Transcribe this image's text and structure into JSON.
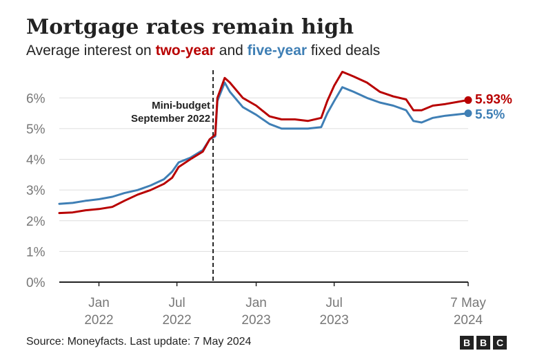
{
  "header": {
    "title": "Mortgage rates remain high",
    "subtitle_parts": [
      "Average interest on ",
      "two-year",
      " and ",
      "five-year",
      " fixed deals"
    ]
  },
  "footer": {
    "source": "Source: Moneyfacts. Last update: 7 May 2024",
    "logo_letters": [
      "B",
      "B",
      "C"
    ]
  },
  "colors": {
    "two_year": "#b80000",
    "five_year": "#3f7fb5",
    "axis": "#222222",
    "grid": "#dddddd",
    "tick_label": "#777777"
  },
  "chart_data": {
    "type": "line",
    "title": "Mortgage rates remain high",
    "subtitle": "Average interest on two-year and five-year fixed deals",
    "ylim": [
      0,
      6.5
    ],
    "y_ticks": [
      {
        "value": 0,
        "label": "0%"
      },
      {
        "value": 1,
        "label": "1%"
      },
      {
        "value": 2,
        "label": "2%"
      },
      {
        "value": 3,
        "label": "3%"
      },
      {
        "value": 4,
        "label": "4%"
      },
      {
        "value": 5,
        "label": "5%"
      },
      {
        "value": 6,
        "label": "6%"
      }
    ],
    "x_ticks": [
      {
        "date": "2022-01-01",
        "line1": "Jan",
        "line2": "2022"
      },
      {
        "date": "2022-07-01",
        "line1": "Jul",
        "line2": "2022"
      },
      {
        "date": "2023-01-01",
        "line1": "Jan",
        "line2": "2023"
      },
      {
        "date": "2023-07-01",
        "line1": "Jul",
        "line2": "2023"
      },
      {
        "date": "2024-05-07",
        "line1": "7 May",
        "line2": "2024"
      }
    ],
    "xlim": [
      "2021-10-01",
      "2024-05-07"
    ],
    "grid": true,
    "annotation": {
      "date": "2022-09-23",
      "line1": "Mini-budget",
      "line2": "September 2022"
    },
    "series": [
      {
        "name": "two-year",
        "end_label": "5.93%",
        "points": [
          [
            "2021-10-01",
            2.25
          ],
          [
            "2021-11-01",
            2.27
          ],
          [
            "2021-12-01",
            2.34
          ],
          [
            "2022-01-01",
            2.38
          ],
          [
            "2022-02-01",
            2.45
          ],
          [
            "2022-03-01",
            2.65
          ],
          [
            "2022-04-01",
            2.85
          ],
          [
            "2022-05-01",
            3.0
          ],
          [
            "2022-06-01",
            3.2
          ],
          [
            "2022-06-20",
            3.4
          ],
          [
            "2022-07-05",
            3.75
          ],
          [
            "2022-08-01",
            4.0
          ],
          [
            "2022-08-30",
            4.25
          ],
          [
            "2022-09-15",
            4.65
          ],
          [
            "2022-09-28",
            4.8
          ],
          [
            "2022-10-03",
            6.0
          ],
          [
            "2022-10-20",
            6.65
          ],
          [
            "2022-11-01",
            6.5
          ],
          [
            "2022-12-01",
            6.0
          ],
          [
            "2023-01-01",
            5.75
          ],
          [
            "2023-02-01",
            5.4
          ],
          [
            "2023-03-01",
            5.3
          ],
          [
            "2023-04-01",
            5.3
          ],
          [
            "2023-05-01",
            5.25
          ],
          [
            "2023-06-01",
            5.35
          ],
          [
            "2023-06-15",
            5.9
          ],
          [
            "2023-07-01",
            6.4
          ],
          [
            "2023-07-20",
            6.85
          ],
          [
            "2023-08-15",
            6.7
          ],
          [
            "2023-09-15",
            6.5
          ],
          [
            "2023-10-15",
            6.2
          ],
          [
            "2023-11-15",
            6.05
          ],
          [
            "2023-12-15",
            5.95
          ],
          [
            "2024-01-01",
            5.6
          ],
          [
            "2024-01-20",
            5.6
          ],
          [
            "2024-02-15",
            5.75
          ],
          [
            "2024-03-15",
            5.8
          ],
          [
            "2024-05-07",
            5.93
          ]
        ]
      },
      {
        "name": "five-year",
        "end_label": "5.5%",
        "points": [
          [
            "2021-10-01",
            2.55
          ],
          [
            "2021-11-01",
            2.58
          ],
          [
            "2021-12-01",
            2.65
          ],
          [
            "2022-01-01",
            2.7
          ],
          [
            "2022-02-01",
            2.78
          ],
          [
            "2022-03-01",
            2.9
          ],
          [
            "2022-04-01",
            3.0
          ],
          [
            "2022-05-01",
            3.15
          ],
          [
            "2022-06-01",
            3.35
          ],
          [
            "2022-06-20",
            3.6
          ],
          [
            "2022-07-05",
            3.9
          ],
          [
            "2022-08-01",
            4.05
          ],
          [
            "2022-08-30",
            4.3
          ],
          [
            "2022-09-15",
            4.65
          ],
          [
            "2022-09-28",
            4.75
          ],
          [
            "2022-10-03",
            5.9
          ],
          [
            "2022-10-20",
            6.5
          ],
          [
            "2022-11-01",
            6.2
          ],
          [
            "2022-12-01",
            5.7
          ],
          [
            "2023-01-01",
            5.45
          ],
          [
            "2023-02-01",
            5.15
          ],
          [
            "2023-03-01",
            5.0
          ],
          [
            "2023-04-01",
            5.0
          ],
          [
            "2023-05-01",
            5.0
          ],
          [
            "2023-06-01",
            5.05
          ],
          [
            "2023-06-15",
            5.5
          ],
          [
            "2023-07-01",
            5.9
          ],
          [
            "2023-07-20",
            6.35
          ],
          [
            "2023-08-15",
            6.2
          ],
          [
            "2023-09-15",
            6.0
          ],
          [
            "2023-10-15",
            5.85
          ],
          [
            "2023-11-15",
            5.75
          ],
          [
            "2023-12-15",
            5.6
          ],
          [
            "2024-01-01",
            5.25
          ],
          [
            "2024-01-20",
            5.2
          ],
          [
            "2024-02-15",
            5.35
          ],
          [
            "2024-03-15",
            5.42
          ],
          [
            "2024-05-07",
            5.5
          ]
        ]
      }
    ]
  }
}
